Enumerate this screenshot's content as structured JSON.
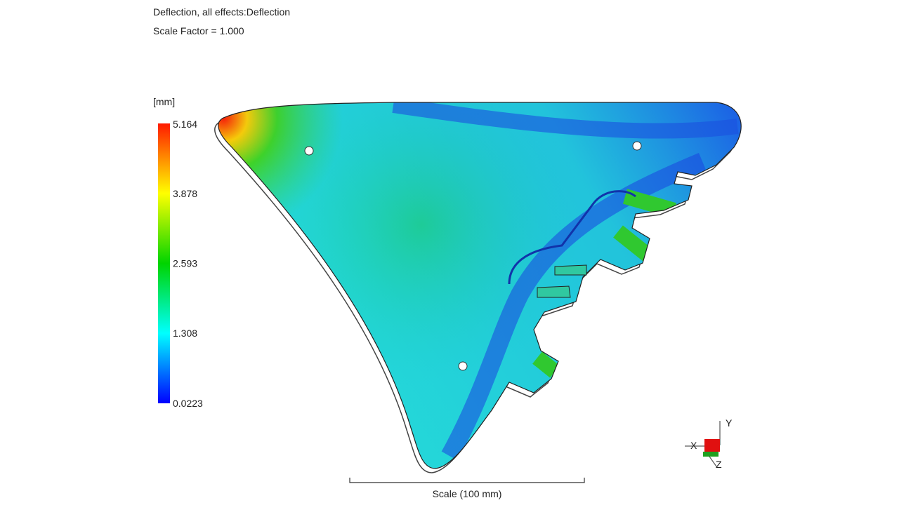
{
  "header": {
    "title": "Deflection, all effects:Deflection",
    "subtitle": "Scale Factor = 1.000"
  },
  "legend": {
    "unit": "[mm]",
    "ticks": [
      5.164,
      3.878,
      2.593,
      1.308,
      0.0223
    ]
  },
  "scale_bar": {
    "label": "Scale (100 mm)"
  },
  "triad": {
    "x": "X",
    "y": "Y",
    "z": "Z"
  }
}
